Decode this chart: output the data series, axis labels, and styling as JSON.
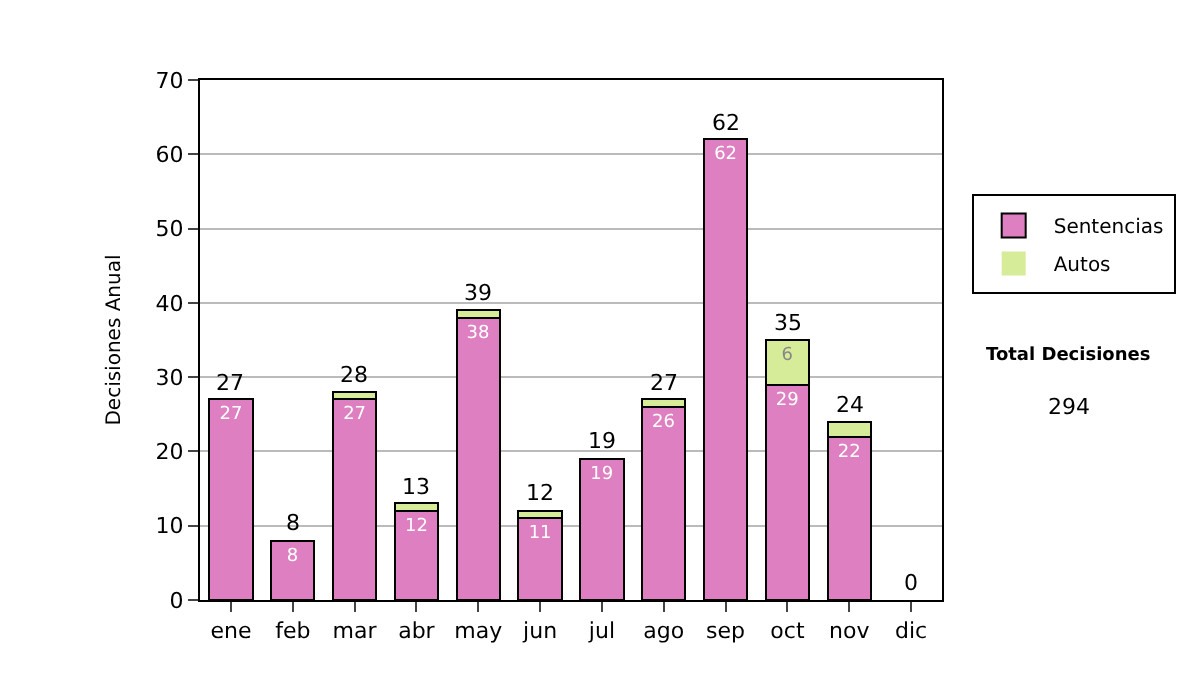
{
  "chart_data": {
    "type": "bar",
    "stacked": true,
    "ylabel": "Decisiones Anual",
    "categories": [
      "ene",
      "feb",
      "mar",
      "abr",
      "may",
      "jun",
      "jul",
      "ago",
      "sep",
      "oct",
      "nov",
      "dic"
    ],
    "series": [
      {
        "name": "Sentencias",
        "color": "#dd7fc0",
        "values": [
          27,
          8,
          27,
          12,
          38,
          11,
          19,
          26,
          62,
          29,
          22,
          0
        ],
        "value_labels": [
          "27",
          "8",
          "27",
          "12",
          "38",
          "11",
          "19",
          "26",
          "62",
          "29",
          "22",
          null
        ]
      },
      {
        "name": "Autos",
        "color": "#d6ec98",
        "values": [
          0,
          0,
          1,
          1,
          1,
          1,
          0,
          1,
          0,
          6,
          2,
          0
        ],
        "value_labels": [
          null,
          null,
          null,
          null,
          null,
          null,
          null,
          null,
          null,
          "6",
          null,
          null
        ]
      }
    ],
    "totals": [
      "27",
      "8",
      "28",
      "13",
      "39",
      "12",
      "19",
      "27",
      "62",
      "35",
      "24",
      "0"
    ],
    "ylim": [
      0,
      70
    ],
    "yticks": [
      0,
      10,
      20,
      30,
      40,
      50,
      60,
      70
    ],
    "grid": "y",
    "legend": "right",
    "annotations": [
      "Total Decisiones",
      "294"
    ]
  }
}
